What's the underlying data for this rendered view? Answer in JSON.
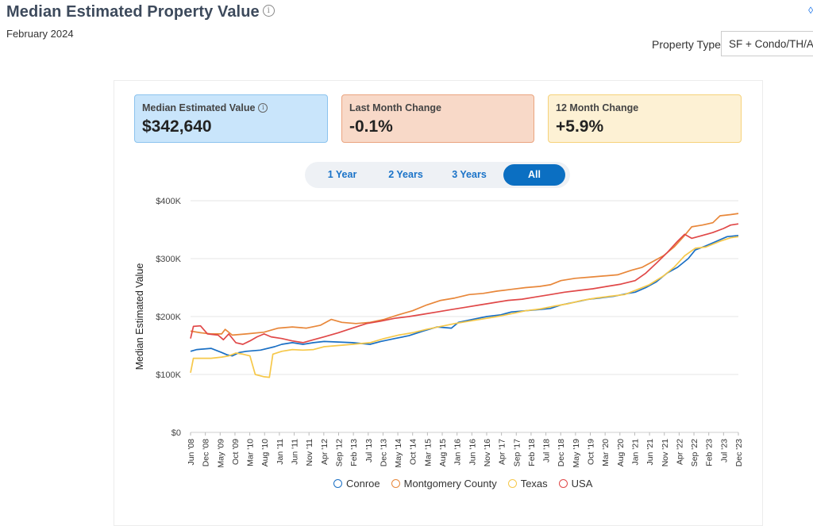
{
  "header": {
    "title": "Median Estimated Property Value",
    "subtitle": "February 2024",
    "property_type_label": "Property Type",
    "property_type_value": "SF + Condo/TH/Apt"
  },
  "cards": [
    {
      "label": "Median Estimated Value",
      "value": "$342,640"
    },
    {
      "label": "Last Month Change",
      "value": "-0.1%"
    },
    {
      "label": "12 Month Change",
      "value": "+5.9%"
    }
  ],
  "tabs": [
    {
      "label": "1 Year"
    },
    {
      "label": "2 Years"
    },
    {
      "label": "3 Years"
    },
    {
      "label": "All"
    }
  ],
  "colors": {
    "conroe": "#1a6fc4",
    "montgomery": "#e8873a",
    "texas": "#f6c84a",
    "usa": "#e04848"
  },
  "chart_data": {
    "type": "line",
    "title": "",
    "xlabel": "",
    "ylabel": "Median Estimated Value",
    "ylim": [
      0,
      400000
    ],
    "yticks": [
      "$0",
      "$100K",
      "$200K",
      "$300K",
      "$400K"
    ],
    "xticks": [
      "Jun '08",
      "Dec '08",
      "May '09",
      "Oct '09",
      "Mar '10",
      "Aug '10",
      "Jan '11",
      "Jun '11",
      "Nov '11",
      "Apr '12",
      "Sep '12",
      "Feb '13",
      "Jul '13",
      "Dec '13",
      "May '14",
      "Oct '14",
      "Mar '15",
      "Aug '15",
      "Jan '16",
      "Jun '16",
      "Nov '16",
      "Apr '17",
      "Sep '17",
      "Feb '18",
      "Jul '18",
      "Dec '18",
      "May '19",
      "Oct '19",
      "Mar '20",
      "Aug '20",
      "Jan '21",
      "Jun '21",
      "Nov '21",
      "Apr '22",
      "Sep '22",
      "Feb '23",
      "Jul '23",
      "Dec '23"
    ],
    "x_range_years": [
      2008.42,
      2023.92
    ],
    "series": [
      {
        "name": "Conroe",
        "key": "conroe",
        "points": [
          [
            2008.42,
            140000
          ],
          [
            2008.6,
            143000
          ],
          [
            2009.0,
            145000
          ],
          [
            2009.3,
            138000
          ],
          [
            2009.45,
            134000
          ],
          [
            2009.6,
            132000
          ],
          [
            2009.8,
            138000
          ],
          [
            2010.0,
            140000
          ],
          [
            2010.4,
            142000
          ],
          [
            2010.8,
            148000
          ],
          [
            2011.0,
            152000
          ],
          [
            2011.3,
            155000
          ],
          [
            2011.6,
            152000
          ],
          [
            2011.9,
            155000
          ],
          [
            2012.2,
            157000
          ],
          [
            2012.6,
            156000
          ],
          [
            2013.0,
            155000
          ],
          [
            2013.5,
            152000
          ],
          [
            2013.8,
            157000
          ],
          [
            2014.2,
            162000
          ],
          [
            2014.6,
            167000
          ],
          [
            2015.0,
            175000
          ],
          [
            2015.4,
            182000
          ],
          [
            2015.8,
            180000
          ],
          [
            2016.0,
            190000
          ],
          [
            2016.4,
            195000
          ],
          [
            2016.8,
            200000
          ],
          [
            2017.2,
            203000
          ],
          [
            2017.5,
            208000
          ],
          [
            2017.9,
            210000
          ],
          [
            2018.3,
            212000
          ],
          [
            2018.6,
            214000
          ],
          [
            2018.9,
            220000
          ],
          [
            2019.3,
            225000
          ],
          [
            2019.7,
            230000
          ],
          [
            2020.0,
            232000
          ],
          [
            2020.4,
            235000
          ],
          [
            2020.8,
            240000
          ],
          [
            2021.0,
            242000
          ],
          [
            2021.3,
            250000
          ],
          [
            2021.6,
            260000
          ],
          [
            2021.9,
            275000
          ],
          [
            2022.2,
            285000
          ],
          [
            2022.5,
            300000
          ],
          [
            2022.7,
            315000
          ],
          [
            2023.0,
            322000
          ],
          [
            2023.3,
            330000
          ],
          [
            2023.6,
            338000
          ],
          [
            2023.92,
            340000
          ]
        ]
      },
      {
        "name": "Montgomery County",
        "key": "montgomery",
        "points": [
          [
            2008.42,
            175000
          ],
          [
            2008.7,
            172000
          ],
          [
            2009.0,
            170000
          ],
          [
            2009.3,
            170000
          ],
          [
            2009.4,
            178000
          ],
          [
            2009.6,
            168000
          ],
          [
            2010.0,
            170000
          ],
          [
            2010.5,
            173000
          ],
          [
            2010.9,
            180000
          ],
          [
            2011.3,
            182000
          ],
          [
            2011.7,
            180000
          ],
          [
            2012.1,
            185000
          ],
          [
            2012.4,
            195000
          ],
          [
            2012.7,
            190000
          ],
          [
            2013.1,
            188000
          ],
          [
            2013.5,
            190000
          ],
          [
            2013.9,
            195000
          ],
          [
            2014.3,
            203000
          ],
          [
            2014.7,
            210000
          ],
          [
            2015.1,
            220000
          ],
          [
            2015.5,
            228000
          ],
          [
            2015.9,
            232000
          ],
          [
            2016.3,
            238000
          ],
          [
            2016.7,
            240000
          ],
          [
            2017.1,
            244000
          ],
          [
            2017.5,
            247000
          ],
          [
            2017.9,
            250000
          ],
          [
            2018.3,
            252000
          ],
          [
            2018.6,
            255000
          ],
          [
            2018.9,
            262000
          ],
          [
            2019.3,
            266000
          ],
          [
            2019.7,
            268000
          ],
          [
            2020.1,
            270000
          ],
          [
            2020.5,
            272000
          ],
          [
            2020.9,
            280000
          ],
          [
            2021.2,
            285000
          ],
          [
            2021.5,
            295000
          ],
          [
            2021.8,
            305000
          ],
          [
            2022.1,
            320000
          ],
          [
            2022.4,
            340000
          ],
          [
            2022.6,
            355000
          ],
          [
            2022.9,
            358000
          ],
          [
            2023.2,
            362000
          ],
          [
            2023.4,
            374000
          ],
          [
            2023.7,
            376000
          ],
          [
            2023.92,
            378000
          ]
        ]
      },
      {
        "name": "Texas",
        "key": "texas",
        "points": [
          [
            2008.42,
            103000
          ],
          [
            2008.5,
            128000
          ],
          [
            2009.0,
            128000
          ],
          [
            2009.3,
            130000
          ],
          [
            2009.5,
            132000
          ],
          [
            2009.7,
            137000
          ],
          [
            2009.9,
            135000
          ],
          [
            2010.1,
            132000
          ],
          [
            2010.25,
            100000
          ],
          [
            2010.5,
            96000
          ],
          [
            2010.65,
            95000
          ],
          [
            2010.75,
            135000
          ],
          [
            2011.0,
            140000
          ],
          [
            2011.3,
            143000
          ],
          [
            2011.6,
            142000
          ],
          [
            2011.9,
            143000
          ],
          [
            2012.2,
            148000
          ],
          [
            2012.6,
            150000
          ],
          [
            2013.0,
            152000
          ],
          [
            2013.5,
            155000
          ],
          [
            2013.9,
            162000
          ],
          [
            2014.3,
            168000
          ],
          [
            2014.7,
            172000
          ],
          [
            2015.1,
            178000
          ],
          [
            2015.5,
            183000
          ],
          [
            2015.9,
            188000
          ],
          [
            2016.3,
            192000
          ],
          [
            2016.7,
            196000
          ],
          [
            2017.1,
            200000
          ],
          [
            2017.5,
            205000
          ],
          [
            2017.9,
            210000
          ],
          [
            2018.3,
            213000
          ],
          [
            2018.7,
            218000
          ],
          [
            2019.1,
            222000
          ],
          [
            2019.5,
            228000
          ],
          [
            2019.9,
            232000
          ],
          [
            2020.3,
            235000
          ],
          [
            2020.7,
            238000
          ],
          [
            2021.0,
            245000
          ],
          [
            2021.4,
            255000
          ],
          [
            2021.8,
            270000
          ],
          [
            2022.1,
            285000
          ],
          [
            2022.4,
            305000
          ],
          [
            2022.7,
            318000
          ],
          [
            2023.0,
            320000
          ],
          [
            2023.4,
            330000
          ],
          [
            2023.7,
            336000
          ],
          [
            2023.92,
            338000
          ]
        ]
      },
      {
        "name": "USA",
        "key": "usa",
        "points": [
          [
            2008.42,
            162000
          ],
          [
            2008.5,
            183000
          ],
          [
            2008.7,
            184000
          ],
          [
            2008.9,
            170000
          ],
          [
            2009.2,
            168000
          ],
          [
            2009.35,
            160000
          ],
          [
            2009.5,
            170000
          ],
          [
            2009.7,
            155000
          ],
          [
            2009.9,
            152000
          ],
          [
            2010.1,
            158000
          ],
          [
            2010.3,
            165000
          ],
          [
            2010.5,
            170000
          ],
          [
            2010.7,
            165000
          ],
          [
            2011.0,
            162000
          ],
          [
            2011.3,
            158000
          ],
          [
            2011.6,
            155000
          ],
          [
            2011.9,
            160000
          ],
          [
            2012.2,
            165000
          ],
          [
            2012.6,
            172000
          ],
          [
            2013.0,
            180000
          ],
          [
            2013.4,
            188000
          ],
          [
            2013.8,
            192000
          ],
          [
            2014.2,
            197000
          ],
          [
            2014.6,
            200000
          ],
          [
            2015.0,
            204000
          ],
          [
            2015.4,
            208000
          ],
          [
            2015.8,
            212000
          ],
          [
            2016.2,
            216000
          ],
          [
            2016.6,
            220000
          ],
          [
            2017.0,
            224000
          ],
          [
            2017.4,
            228000
          ],
          [
            2017.8,
            230000
          ],
          [
            2018.2,
            234000
          ],
          [
            2018.6,
            238000
          ],
          [
            2019.0,
            242000
          ],
          [
            2019.4,
            245000
          ],
          [
            2019.8,
            248000
          ],
          [
            2020.2,
            252000
          ],
          [
            2020.6,
            256000
          ],
          [
            2021.0,
            262000
          ],
          [
            2021.3,
            275000
          ],
          [
            2021.6,
            292000
          ],
          [
            2021.9,
            310000
          ],
          [
            2022.2,
            330000
          ],
          [
            2022.4,
            342000
          ],
          [
            2022.6,
            335000
          ],
          [
            2022.9,
            340000
          ],
          [
            2023.2,
            345000
          ],
          [
            2023.5,
            352000
          ],
          [
            2023.7,
            358000
          ],
          [
            2023.92,
            360000
          ]
        ]
      }
    ]
  }
}
